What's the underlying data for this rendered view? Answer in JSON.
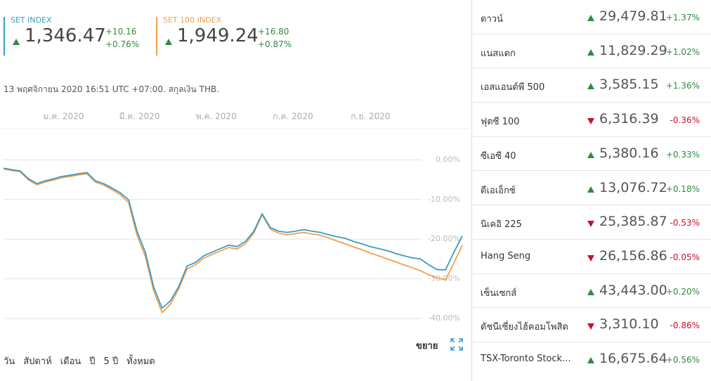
{
  "header": {
    "indices": [
      {
        "name": "SET INDEX",
        "value": "1,346.47",
        "change": "+10.16",
        "change_pct": "+0.76%",
        "color": "#3a9cc2"
      },
      {
        "name": "SET 100 INDEX",
        "value": "1,949.24",
        "change": "+16.80",
        "change_pct": "+0.87%",
        "color": "#f0a04b"
      }
    ],
    "timestamp": "13 พฤศจิกายน 2020 16:51 UTC +07:00. สกุลเงิน THB."
  },
  "chart_data": {
    "type": "line",
    "xlim": [
      0,
      55
    ],
    "xticks": [
      {
        "value": 7.2,
        "label": "ม.ค. 2020"
      },
      {
        "value": 16.3,
        "label": "มี.ค. 2020"
      },
      {
        "value": 25.5,
        "label": "พ.ค. 2020"
      },
      {
        "value": 34.7,
        "label": "ก.ค. 2020"
      },
      {
        "value": 44,
        "label": "ก.ย. 2020"
      }
    ],
    "ylim": [
      7.5,
      -43
    ],
    "yticks": [
      {
        "value": 0,
        "label": "0.00%"
      },
      {
        "value": -10,
        "label": "-10.00%"
      },
      {
        "value": -20,
        "label": "-20.00%"
      },
      {
        "value": -30,
        "label": "-30.00%"
      },
      {
        "value": -40,
        "label": "-40.00%"
      }
    ],
    "grid": true,
    "series": [
      {
        "color": "#3a9cc2",
        "values": [
          -2.1,
          -2.5,
          -2.8,
          -4.8,
          -6.0,
          -5.3,
          -4.8,
          -4.2,
          -3.9,
          -3.5,
          -3.2,
          -5.3,
          -6.0,
          -7.1,
          -8.3,
          -10.1,
          -18,
          -23.3,
          -32,
          -37.4,
          -35.6,
          -32,
          -26.8,
          -25.9,
          -24.2,
          -23.3,
          -22.4,
          -21.5,
          -21.9,
          -20.6,
          -18,
          -13.6,
          -17.1,
          -18,
          -18.3,
          -18,
          -17.6,
          -18,
          -18.3,
          -18.9,
          -19.4,
          -19.8,
          -20.6,
          -21.2,
          -21.9,
          -22.4,
          -22.9,
          -23.6,
          -24.2,
          -24.7,
          -25.0,
          -26.5,
          -27.7,
          -27.7,
          -23.3,
          -19.2
        ]
      },
      {
        "color": "#f0a04b",
        "values": [
          -2.3,
          -2.7,
          -3.0,
          -5.1,
          -6.3,
          -5.6,
          -5.1,
          -4.5,
          -4.2,
          -3.8,
          -3.5,
          -5.6,
          -6.4,
          -7.5,
          -8.8,
          -10.8,
          -19,
          -24.3,
          -33,
          -38.5,
          -36.4,
          -32.6,
          -27.5,
          -26.5,
          -24.8,
          -23.9,
          -23,
          -22.1,
          -22.5,
          -21.2,
          -18.5,
          -13.9,
          -17.5,
          -18.5,
          -18.9,
          -18.6,
          -18.3,
          -18.7,
          -19,
          -19.7,
          -20.5,
          -21.2,
          -22,
          -22.7,
          -23.5,
          -24.2,
          -25,
          -25.7,
          -26.5,
          -27.2,
          -28,
          -29,
          -29.8,
          -30.2,
          -26,
          -21.5
        ]
      }
    ]
  },
  "controls": {
    "expand": "ขยาย",
    "periods": [
      "วัน",
      "สัปดาห์",
      "เดือน",
      "ปี",
      "5 ปี",
      "ทั้งหมด"
    ]
  },
  "markets": [
    {
      "name": "ดาวน์",
      "value": "29,479.81",
      "change": "+1.37%"
    },
    {
      "name": "แนสแดก",
      "value": "11,829.29",
      "change": "+1.02%"
    },
    {
      "name": "เอสแอนด์พี 500",
      "value": "3,585.15",
      "change": "+1.36%"
    },
    {
      "name": "ฟุตซี 100",
      "value": "6,316.39",
      "change": "-0.36%"
    },
    {
      "name": "ซีเอซี 40",
      "value": "5,380.16",
      "change": "+0.33%"
    },
    {
      "name": "ดีเอเอ็กซ์",
      "value": "13,076.72",
      "change": "+0.18%"
    },
    {
      "name": "นิเคอิ 225",
      "value": "25,385.87",
      "change": "-0.53%"
    },
    {
      "name": "Hang Seng",
      "value": "26,156.86",
      "change": "-0.05%"
    },
    {
      "name": "เซ็นเซกส์",
      "value": "43,443.00",
      "change": "+0.20%"
    },
    {
      "name": "ดัชนีเซี่ยงไฮ้คอมโพสิต",
      "value": "3,310.10",
      "change": "-0.86%"
    },
    {
      "name": "TSX-Toronto Stock...",
      "value": "16,675.64",
      "change": "+0.56%"
    }
  ]
}
